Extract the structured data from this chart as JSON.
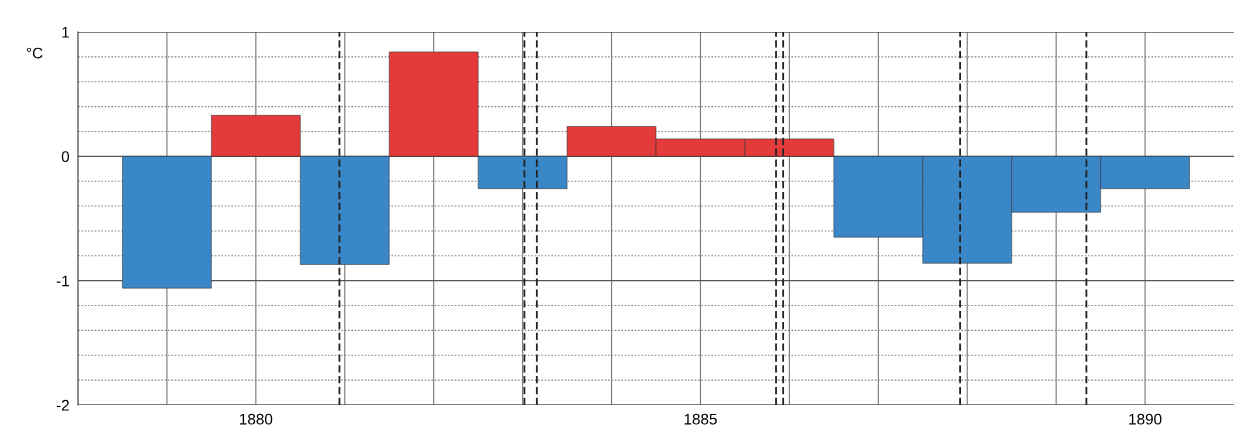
{
  "chart_data": {
    "type": "bar",
    "ylabel": "°C",
    "x": [
      1879,
      1880,
      1881,
      1882,
      1883,
      1884,
      1885,
      1886,
      1887,
      1888,
      1889,
      1890
    ],
    "values": [
      -1.06,
      0.33,
      -0.87,
      0.84,
      -0.26,
      0.24,
      0.14,
      0.14,
      -0.65,
      -0.86,
      -0.45,
      -0.26
    ],
    "colors": [
      "#3a87c8",
      "#e53a3a",
      "#3a87c8",
      "#e53a3a",
      "#3a87c8",
      "#e53a3a",
      "#e53a3a",
      "#e53a3a",
      "#3a87c8",
      "#3a87c8",
      "#3a87c8",
      "#3a87c8"
    ],
    "xlim": [
      1878.0,
      1891.0
    ],
    "xticks": [
      {
        "value": 1879,
        "label": null
      },
      1880,
      {
        "value": 1881,
        "label": null
      },
      {
        "value": 1882,
        "label": null
      },
      {
        "value": 1883,
        "label": null
      },
      {
        "value": 1884,
        "label": null
      },
      1885,
      {
        "value": 1886,
        "label": null
      },
      {
        "value": 1887,
        "label": null
      },
      {
        "value": 1888,
        "label": null
      },
      {
        "value": 1889,
        "label": null
      },
      1890
    ],
    "ylim": [
      -2,
      1
    ],
    "yticks": [
      -2,
      {
        "value": -1.8,
        "label": null
      },
      {
        "value": -1.6,
        "label": null
      },
      {
        "value": -1.4,
        "label": null
      },
      {
        "value": -1.2,
        "label": null
      },
      -1,
      {
        "value": -0.8,
        "label": null
      },
      {
        "value": -0.6,
        "label": null
      },
      {
        "value": -0.4,
        "label": null
      },
      {
        "value": -0.2,
        "label": null
      },
      0,
      {
        "value": 0.2,
        "label": null
      },
      {
        "value": 0.4,
        "label": null
      },
      {
        "value": 0.6,
        "label": null
      },
      {
        "value": 0.8,
        "label": null
      },
      1
    ],
    "grid": true,
    "ref_lines": [
      {
        "axis": "x",
        "value": 1880.94,
        "color": "#222222",
        "line_style": "dashed"
      },
      {
        "axis": "x",
        "value": 1883.02,
        "color": "#222222",
        "line_style": "dashed"
      },
      {
        "axis": "x",
        "value": 1883.16,
        "color": "#222222",
        "line_style": "dashed"
      },
      {
        "axis": "x",
        "value": 1885.85,
        "color": "#222222",
        "line_style": "dashed"
      },
      {
        "axis": "x",
        "value": 1885.93,
        "color": "#222222",
        "line_style": "dashed"
      },
      {
        "axis": "x",
        "value": 1887.92,
        "color": "#222222",
        "line_style": "dashed"
      },
      {
        "axis": "x",
        "value": 1889.34,
        "color": "#222222",
        "line_style": "dashed"
      }
    ]
  }
}
